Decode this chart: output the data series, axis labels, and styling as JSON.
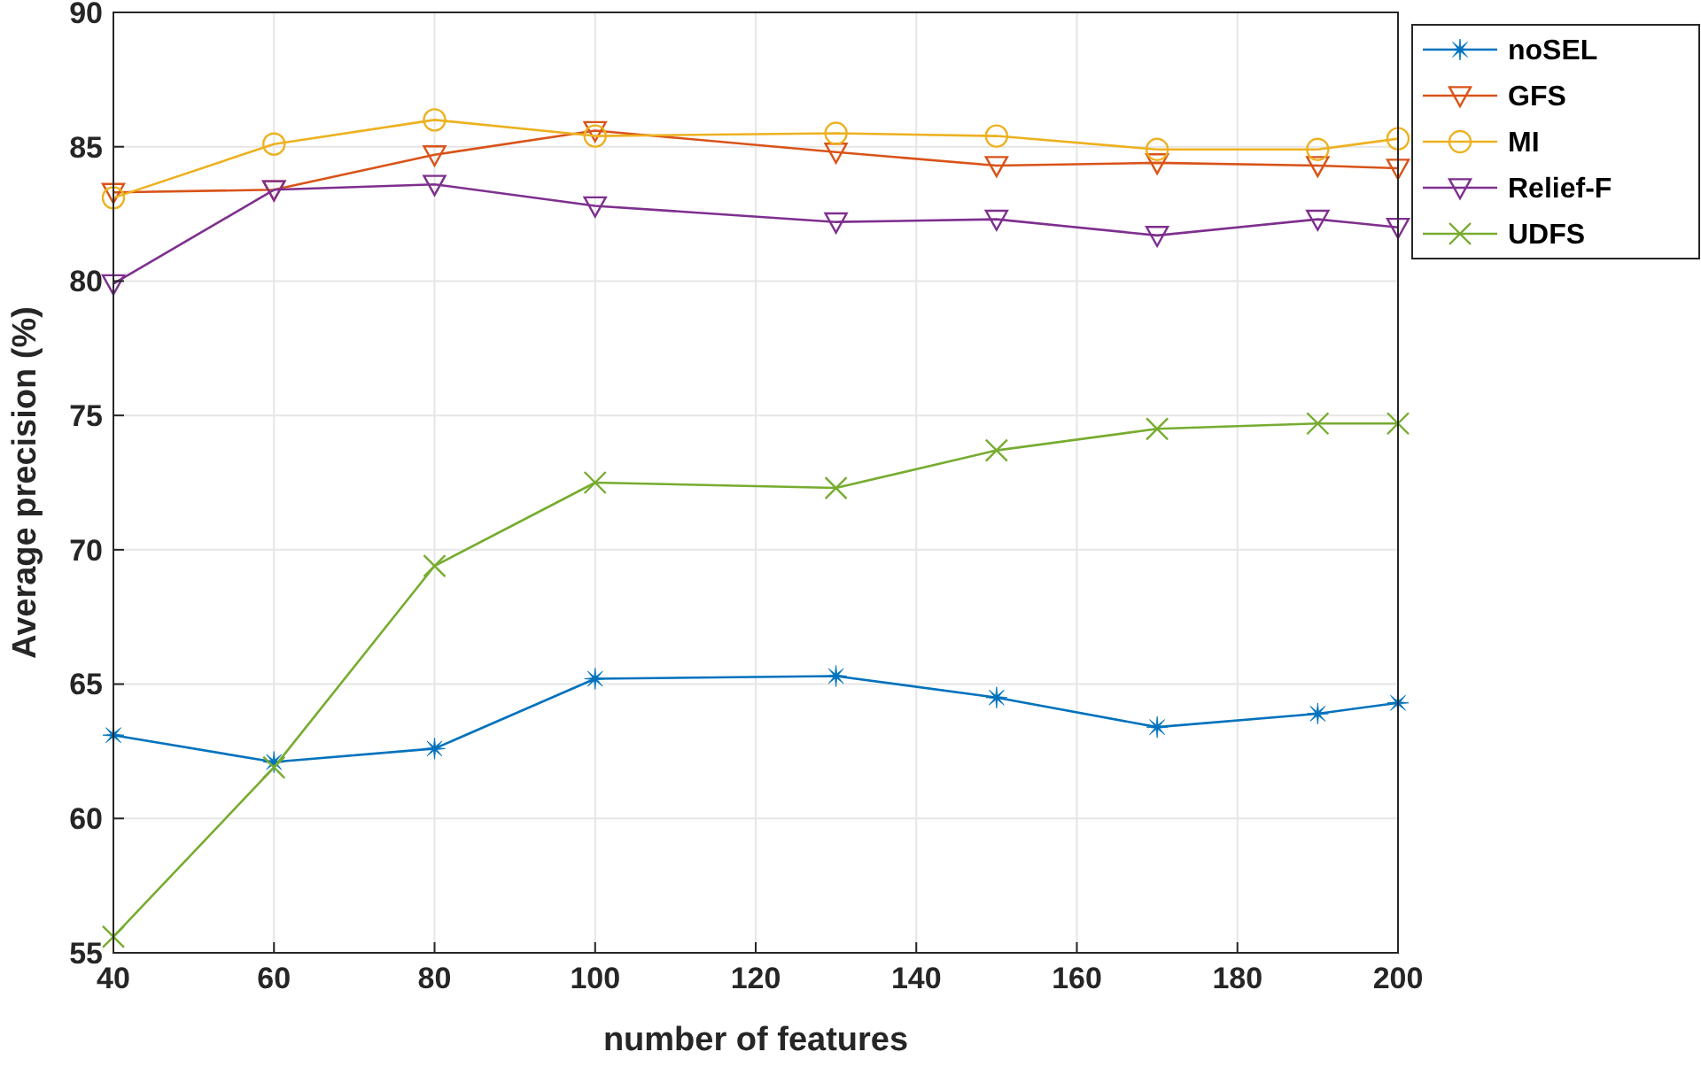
{
  "chart_data": {
    "type": "line",
    "xlabel": "number of features",
    "ylabel": "Average precision (%)",
    "x": [
      40,
      60,
      80,
      100,
      130,
      150,
      170,
      190,
      200
    ],
    "xlim": [
      40,
      200
    ],
    "xticks": [
      40,
      60,
      80,
      100,
      120,
      140,
      160,
      180,
      200
    ],
    "ylim": [
      55,
      90
    ],
    "yticks": [
      55,
      60,
      65,
      70,
      75,
      80,
      85,
      90
    ],
    "grid": true,
    "legend": "top right",
    "line_style": "solid",
    "series": [
      {
        "name": "noSEL",
        "color": "#0072bd",
        "marker": "star",
        "values": [
          63.1,
          62.1,
          62.6,
          65.2,
          65.3,
          64.5,
          63.4,
          63.9,
          64.3
        ]
      },
      {
        "name": "GFS",
        "color": "#d95319",
        "marker": "triangle",
        "values": [
          83.3,
          83.4,
          84.7,
          85.6,
          84.8,
          84.3,
          84.4,
          84.3,
          84.2
        ]
      },
      {
        "name": "MI",
        "color": "#edb120",
        "marker": "circle",
        "values": [
          83.1,
          85.1,
          86.0,
          85.4,
          85.5,
          85.4,
          84.9,
          84.9,
          85.3
        ]
      },
      {
        "name": "Relief-F",
        "color": "#7e2f8e",
        "marker": "triangle",
        "values": [
          79.9,
          83.4,
          83.6,
          82.8,
          82.2,
          82.3,
          81.7,
          82.3,
          82.0
        ]
      },
      {
        "name": "UDFS",
        "color": "#77ac30",
        "marker": "cross",
        "values": [
          55.6,
          61.9,
          69.4,
          72.5,
          72.3,
          73.7,
          74.5,
          74.7,
          74.7
        ]
      }
    ]
  }
}
